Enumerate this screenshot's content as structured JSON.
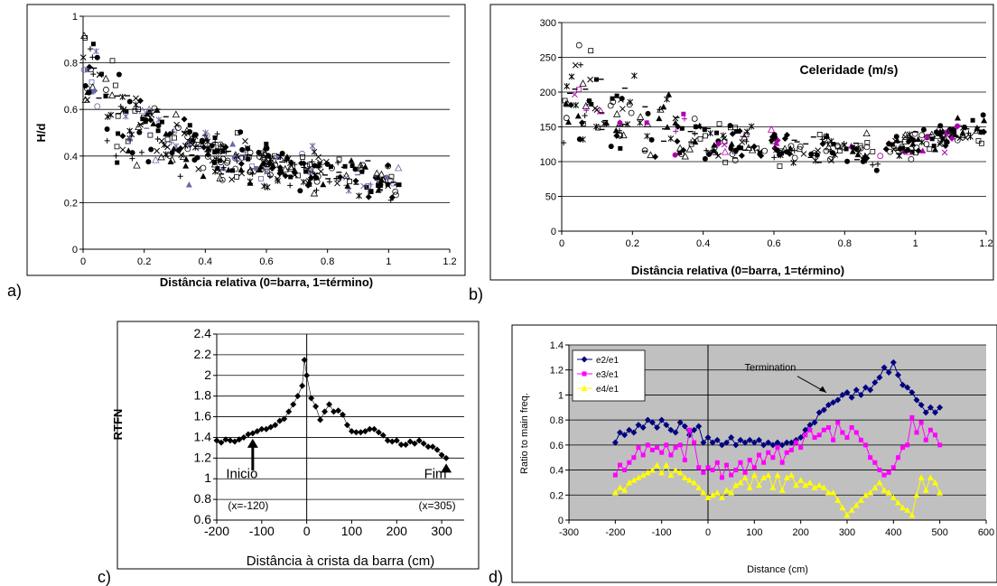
{
  "panels": [
    {
      "letter": "a)",
      "type": "scatter",
      "ylabel": "H/d",
      "xlabel": "Distância relativa (0=barra, 1=término)",
      "xlim": [
        0,
        1.2
      ],
      "ylim": [
        0,
        1
      ],
      "xticks": [
        "0",
        "0.2",
        "0.4",
        "0.6",
        "0.8",
        "1",
        "1.2"
      ],
      "yticks": [
        "0",
        "0.2",
        "0.4",
        "0.6",
        "0.8",
        "1"
      ],
      "grid": "horizontal",
      "trend": [
        [
          0,
          0.82
        ],
        [
          0.05,
          0.68
        ],
        [
          0.1,
          0.6
        ],
        [
          0.2,
          0.52
        ],
        [
          0.3,
          0.46
        ],
        [
          0.4,
          0.42
        ],
        [
          0.5,
          0.39
        ],
        [
          0.6,
          0.37
        ],
        [
          0.7,
          0.35
        ],
        [
          0.8,
          0.33
        ],
        [
          0.9,
          0.31
        ],
        [
          1.0,
          0.29
        ],
        [
          1.04,
          0.28
        ]
      ],
      "spread": [
        0.14,
        0.05
      ]
    },
    {
      "letter": "b)",
      "type": "scatter",
      "annotation": "Celeridade (m/s)",
      "xlabel": "Distância relativa (0=barra, 1=término)",
      "xlim": [
        0,
        1.2
      ],
      "ylim": [
        0,
        300
      ],
      "xticks": [
        "0",
        "0.2",
        "0.4",
        "0.6",
        "0.8",
        "1",
        "1.2"
      ],
      "yticks": [
        "0",
        "50",
        "100",
        "150",
        "200",
        "250",
        "300"
      ],
      "grid": "horizontal",
      "trend": [
        [
          0,
          185
        ],
        [
          0.05,
          190
        ],
        [
          0.1,
          175
        ],
        [
          0.2,
          160
        ],
        [
          0.3,
          145
        ],
        [
          0.4,
          130
        ],
        [
          0.5,
          125
        ],
        [
          0.6,
          122
        ],
        [
          0.7,
          118
        ],
        [
          0.8,
          115
        ],
        [
          0.9,
          112
        ],
        [
          1.0,
          125
        ],
        [
          1.1,
          140
        ],
        [
          1.2,
          150
        ]
      ],
      "spread": [
        45,
        15
      ]
    },
    {
      "letter": "c)",
      "type": "line",
      "ylabel": "RTFN",
      "xlabel": "Distância à crista da barra (cm)",
      "xlim": [
        -200,
        350
      ],
      "ylim": [
        0.6,
        2.4
      ],
      "xticks": [
        "-200",
        "-100",
        "0",
        "100",
        "200",
        "300"
      ],
      "yticks": [
        "0.6",
        "0.8",
        "1",
        "1.2",
        "1.4",
        "1.6",
        "1.8",
        "2",
        "2.2",
        "2.4"
      ],
      "grid": "horizontal",
      "annotations": [
        {
          "label": "Inicio",
          "sub": "(x=-120)",
          "x": -120
        },
        {
          "label": "Fim",
          "sub": "(x=305)",
          "x": 310
        }
      ],
      "x": [
        -200,
        -190,
        -180,
        -170,
        -160,
        -150,
        -140,
        -130,
        -120,
        -110,
        -100,
        -90,
        -80,
        -70,
        -60,
        -50,
        -40,
        -30,
        -20,
        -10,
        -5,
        0,
        10,
        20,
        30,
        40,
        50,
        60,
        70,
        80,
        90,
        100,
        110,
        120,
        130,
        140,
        150,
        160,
        170,
        180,
        190,
        200,
        210,
        220,
        230,
        240,
        250,
        260,
        270,
        280,
        290,
        300,
        310
      ],
      "y": [
        1.37,
        1.35,
        1.38,
        1.37,
        1.36,
        1.38,
        1.4,
        1.43,
        1.44,
        1.46,
        1.48,
        1.48,
        1.5,
        1.52,
        1.56,
        1.58,
        1.65,
        1.72,
        1.8,
        1.9,
        2.15,
        2.0,
        1.78,
        1.7,
        1.57,
        1.65,
        1.72,
        1.65,
        1.66,
        1.62,
        1.52,
        1.46,
        1.45,
        1.45,
        1.46,
        1.48,
        1.48,
        1.45,
        1.42,
        1.37,
        1.36,
        1.37,
        1.33,
        1.33,
        1.36,
        1.34,
        1.37,
        1.34,
        1.31,
        1.31,
        1.28,
        1.23,
        1.2
      ]
    },
    {
      "letter": "d)",
      "type": "line",
      "ylabel": "Ratio to main freq.",
      "xlabel": "Distance (cm)",
      "xlim": [
        -300,
        600
      ],
      "ylim": [
        0,
        1.4
      ],
      "xticks": [
        "-300",
        "-200",
        "-100",
        "0",
        "100",
        "200",
        "300",
        "400",
        "500",
        "600"
      ],
      "yticks": [
        "0",
        "0.2",
        "0.4",
        "0.6",
        "0.8",
        "1",
        "1.2",
        "1.4"
      ],
      "grid": "horizontal",
      "background": "#c0c0c0",
      "legend": "top-left",
      "annotation": {
        "label": "Termination",
        "x": 255,
        "y": 1.02
      },
      "x": [
        -200,
        -190,
        -180,
        -170,
        -160,
        -150,
        -140,
        -130,
        -120,
        -110,
        -100,
        -90,
        -80,
        -70,
        -60,
        -50,
        -40,
        -30,
        -20,
        -10,
        0,
        10,
        20,
        30,
        40,
        50,
        60,
        70,
        80,
        90,
        100,
        110,
        120,
        130,
        140,
        150,
        160,
        170,
        180,
        190,
        200,
        210,
        220,
        230,
        240,
        250,
        260,
        270,
        280,
        290,
        300,
        310,
        320,
        330,
        340,
        350,
        360,
        370,
        380,
        390,
        400,
        410,
        420,
        430,
        440,
        450,
        460,
        470,
        480,
        490,
        500
      ],
      "series": [
        {
          "name": "e2/e1",
          "color": "#000080",
          "marker": "diamond",
          "values": [
            0.62,
            0.7,
            0.68,
            0.72,
            0.7,
            0.76,
            0.74,
            0.8,
            0.78,
            0.74,
            0.8,
            0.76,
            0.72,
            0.7,
            0.78,
            0.75,
            0.68,
            0.72,
            0.75,
            0.62,
            0.66,
            0.62,
            0.64,
            0.6,
            0.62,
            0.66,
            0.6,
            0.64,
            0.62,
            0.64,
            0.62,
            0.64,
            0.6,
            0.62,
            0.6,
            0.62,
            0.6,
            0.62,
            0.62,
            0.64,
            0.66,
            0.72,
            0.76,
            0.78,
            0.86,
            0.88,
            0.92,
            0.94,
            0.96,
            1.0,
            1.02,
            0.98,
            1.04,
            1.0,
            1.06,
            1.04,
            1.1,
            1.14,
            1.22,
            1.18,
            1.26,
            1.16,
            1.08,
            1.06,
            1.02,
            0.96,
            0.92,
            0.86,
            0.9,
            0.86,
            0.9
          ]
        },
        {
          "name": "e3/e1",
          "color": "#ff00ff",
          "marker": "square",
          "values": [
            0.36,
            0.44,
            0.4,
            0.46,
            0.5,
            0.58,
            0.52,
            0.6,
            0.56,
            0.58,
            0.54,
            0.6,
            0.52,
            0.58,
            0.6,
            0.48,
            0.72,
            0.62,
            0.42,
            0.38,
            0.42,
            0.4,
            0.46,
            0.34,
            0.44,
            0.36,
            0.4,
            0.46,
            0.38,
            0.48,
            0.42,
            0.52,
            0.46,
            0.54,
            0.5,
            0.58,
            0.46,
            0.54,
            0.56,
            0.62,
            0.58,
            0.68,
            0.72,
            0.66,
            0.68,
            0.72,
            0.74,
            0.64,
            0.78,
            0.7,
            0.66,
            0.74,
            0.7,
            0.64,
            0.6,
            0.5,
            0.46,
            0.4,
            0.36,
            0.38,
            0.42,
            0.5,
            0.58,
            0.6,
            0.82,
            0.7,
            0.78,
            0.64,
            0.72,
            0.68,
            0.6
          ]
        },
        {
          "name": "e4/e1",
          "color": "#ffff00",
          "marker": "triangle",
          "values": [
            0.22,
            0.26,
            0.24,
            0.3,
            0.32,
            0.34,
            0.36,
            0.38,
            0.4,
            0.44,
            0.38,
            0.44,
            0.36,
            0.4,
            0.38,
            0.34,
            0.32,
            0.3,
            0.26,
            0.22,
            0.18,
            0.2,
            0.22,
            0.18,
            0.24,
            0.22,
            0.28,
            0.3,
            0.34,
            0.26,
            0.36,
            0.28,
            0.34,
            0.36,
            0.26,
            0.36,
            0.24,
            0.34,
            0.36,
            0.28,
            0.32,
            0.28,
            0.3,
            0.26,
            0.28,
            0.26,
            0.22,
            0.22,
            0.16,
            0.1,
            0.04,
            0.08,
            0.12,
            0.16,
            0.2,
            0.22,
            0.26,
            0.3,
            0.24,
            0.22,
            0.18,
            0.14,
            0.1,
            0.08,
            0.04,
            0.2,
            0.34,
            0.24,
            0.34,
            0.3,
            0.22
          ]
        }
      ]
    }
  ]
}
